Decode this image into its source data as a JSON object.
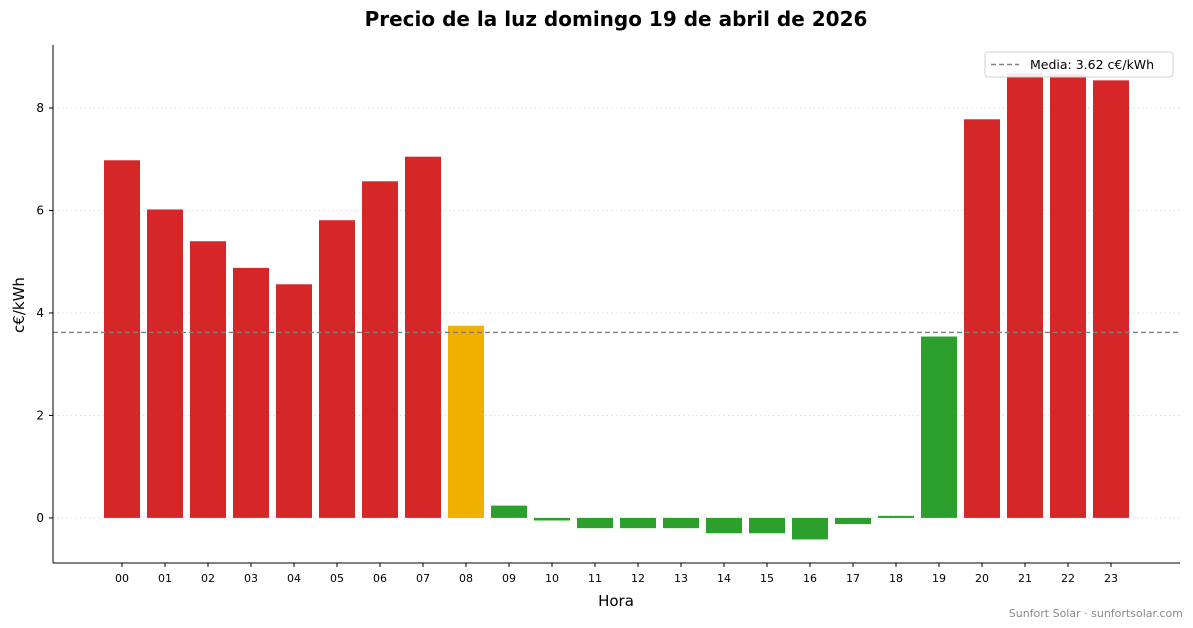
{
  "chart_data": {
    "type": "bar",
    "title": "Precio de la luz domingo 19 de abril de 2026",
    "xlabel": "Hora",
    "ylabel": "c€/kWh",
    "categories": [
      "00",
      "01",
      "02",
      "03",
      "04",
      "05",
      "06",
      "07",
      "08",
      "09",
      "10",
      "11",
      "12",
      "13",
      "14",
      "15",
      "16",
      "17",
      "18",
      "19",
      "20",
      "21",
      "22",
      "23"
    ],
    "values": [
      6.98,
      6.02,
      5.4,
      4.88,
      4.56,
      5.81,
      6.57,
      7.05,
      3.75,
      0.24,
      -0.05,
      -0.2,
      -0.2,
      -0.2,
      -0.3,
      -0.3,
      -0.42,
      -0.12,
      0.04,
      3.54,
      7.78,
      8.68,
      8.66,
      8.54
    ],
    "colors": [
      "#d62728",
      "#d62728",
      "#d62728",
      "#d62728",
      "#d62728",
      "#d62728",
      "#d62728",
      "#d62728",
      "#f0b000",
      "#2ca02c",
      "#2ca02c",
      "#2ca02c",
      "#2ca02c",
      "#2ca02c",
      "#2ca02c",
      "#2ca02c",
      "#2ca02c",
      "#2ca02c",
      "#2ca02c",
      "#2ca02c",
      "#d62728",
      "#d62728",
      "#d62728",
      "#d62728"
    ],
    "ylim": [
      -0.88,
      9.23
    ],
    "yticks": [
      0,
      2,
      4,
      6,
      8
    ],
    "ytick_labels": [
      "0",
      "2",
      "4",
      "6",
      "8"
    ],
    "grid": "horizontal dotted",
    "mean_line": {
      "value": 3.62,
      "label": "Media: 3.62 c€/kWh",
      "color": "#808080",
      "style": "dashed"
    },
    "legend_position": "top-right"
  },
  "credit": "Sunfort Solar · sunfortsolar.com"
}
